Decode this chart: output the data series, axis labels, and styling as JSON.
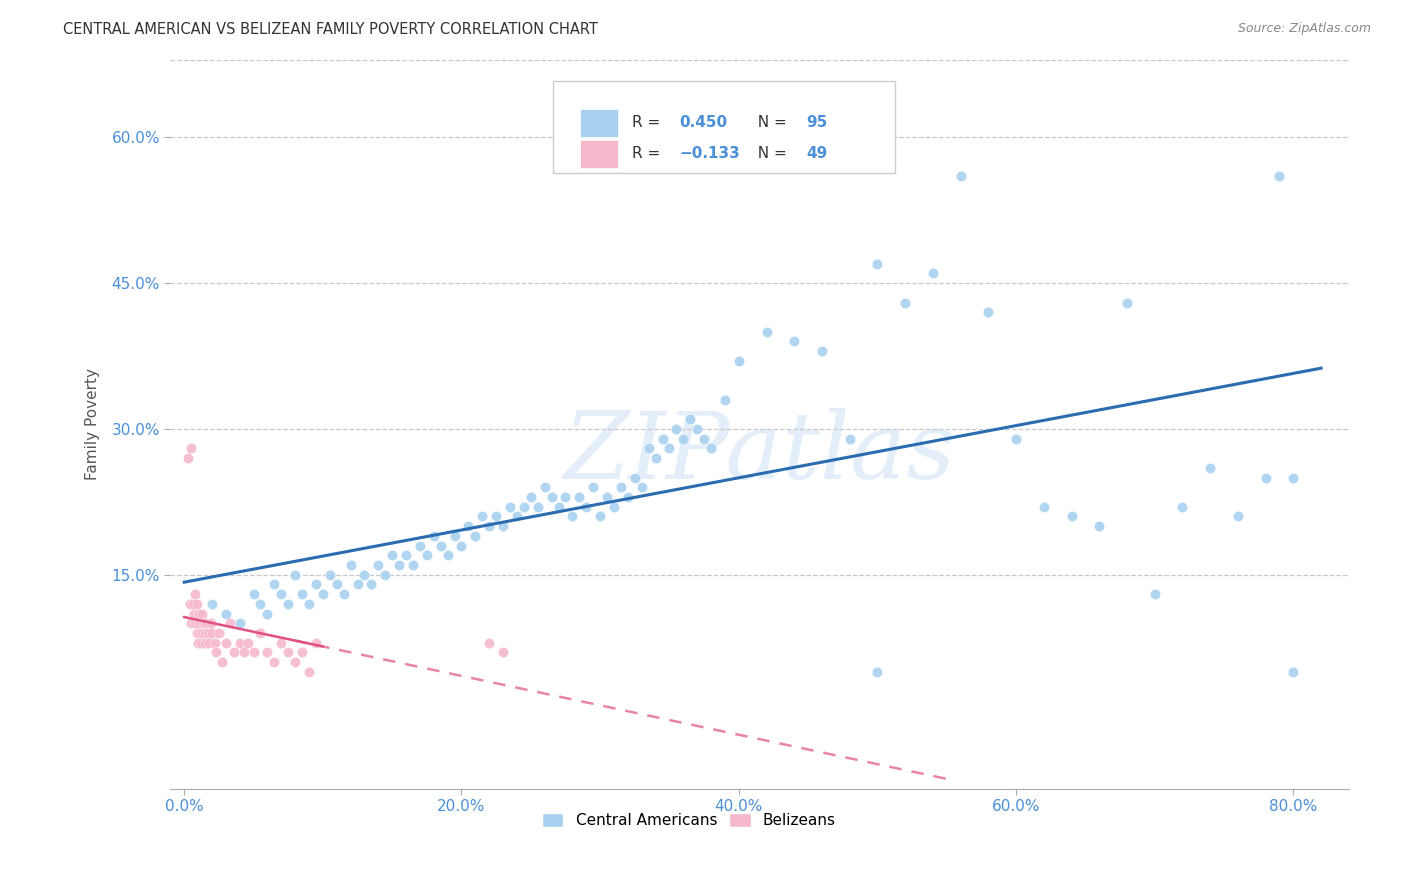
{
  "title": "CENTRAL AMERICAN VS BELIZEAN FAMILY POVERTY CORRELATION CHART",
  "source": "Source: ZipAtlas.com",
  "xlabel_ticks": [
    "0.0%",
    "20.0%",
    "40.0%",
    "60.0%",
    "80.0%"
  ],
  "xlabel_vals": [
    0.0,
    0.2,
    0.4,
    0.6,
    0.8
  ],
  "ylabel_ticks": [
    "60.0%",
    "45.0%",
    "30.0%",
    "15.0%"
  ],
  "ylabel_vals": [
    0.6,
    0.45,
    0.3,
    0.15
  ],
  "xlim": [
    -0.01,
    0.84
  ],
  "ylim": [
    -0.07,
    0.68
  ],
  "ylabel": "Family Poverty",
  "legend_labels": [
    "Central Americans",
    "Belizeans"
  ],
  "blue_color": "#a8d1f0",
  "pink_color": "#f5b8cc",
  "blue_line_color": "#2b6cb0",
  "pink_line_color": "#e05080",
  "R_blue": 0.45,
  "N_blue": 95,
  "R_pink": -0.133,
  "N_pink": 49,
  "blue_scatter_x": [
    0.02,
    0.03,
    0.04,
    0.05,
    0.055,
    0.06,
    0.065,
    0.07,
    0.075,
    0.08,
    0.085,
    0.09,
    0.095,
    0.1,
    0.105,
    0.11,
    0.115,
    0.12,
    0.125,
    0.13,
    0.135,
    0.14,
    0.145,
    0.15,
    0.155,
    0.16,
    0.165,
    0.17,
    0.175,
    0.18,
    0.185,
    0.19,
    0.195,
    0.2,
    0.205,
    0.21,
    0.215,
    0.22,
    0.225,
    0.23,
    0.235,
    0.24,
    0.245,
    0.25,
    0.255,
    0.26,
    0.265,
    0.27,
    0.275,
    0.28,
    0.285,
    0.29,
    0.295,
    0.3,
    0.305,
    0.31,
    0.315,
    0.32,
    0.325,
    0.33,
    0.335,
    0.34,
    0.345,
    0.35,
    0.355,
    0.36,
    0.365,
    0.37,
    0.375,
    0.38,
    0.39,
    0.4,
    0.42,
    0.44,
    0.46,
    0.48,
    0.5,
    0.52,
    0.54,
    0.56,
    0.58,
    0.6,
    0.62,
    0.64,
    0.66,
    0.68,
    0.7,
    0.72,
    0.74,
    0.76,
    0.78,
    0.79,
    0.8,
    0.8,
    0.5
  ],
  "blue_scatter_y": [
    0.12,
    0.11,
    0.1,
    0.13,
    0.12,
    0.11,
    0.14,
    0.13,
    0.12,
    0.15,
    0.13,
    0.12,
    0.14,
    0.13,
    0.15,
    0.14,
    0.13,
    0.16,
    0.14,
    0.15,
    0.14,
    0.16,
    0.15,
    0.17,
    0.16,
    0.17,
    0.16,
    0.18,
    0.17,
    0.19,
    0.18,
    0.17,
    0.19,
    0.18,
    0.2,
    0.19,
    0.21,
    0.2,
    0.21,
    0.2,
    0.22,
    0.21,
    0.22,
    0.23,
    0.22,
    0.24,
    0.23,
    0.22,
    0.23,
    0.21,
    0.23,
    0.22,
    0.24,
    0.21,
    0.23,
    0.22,
    0.24,
    0.23,
    0.25,
    0.24,
    0.28,
    0.27,
    0.29,
    0.28,
    0.3,
    0.29,
    0.31,
    0.3,
    0.29,
    0.28,
    0.33,
    0.37,
    0.4,
    0.39,
    0.38,
    0.29,
    0.47,
    0.43,
    0.46,
    0.56,
    0.42,
    0.29,
    0.22,
    0.21,
    0.2,
    0.43,
    0.13,
    0.22,
    0.26,
    0.21,
    0.25,
    0.56,
    0.25,
    0.05,
    0.05
  ],
  "pink_scatter_x": [
    0.003,
    0.004,
    0.005,
    0.005,
    0.006,
    0.007,
    0.008,
    0.008,
    0.009,
    0.009,
    0.01,
    0.01,
    0.01,
    0.011,
    0.011,
    0.012,
    0.012,
    0.013,
    0.013,
    0.014,
    0.015,
    0.015,
    0.016,
    0.017,
    0.018,
    0.019,
    0.02,
    0.022,
    0.023,
    0.025,
    0.027,
    0.03,
    0.033,
    0.036,
    0.04,
    0.043,
    0.046,
    0.05,
    0.055,
    0.06,
    0.065,
    0.07,
    0.075,
    0.08,
    0.085,
    0.09,
    0.095,
    0.22,
    0.23
  ],
  "pink_scatter_y": [
    0.27,
    0.12,
    0.28,
    0.1,
    0.12,
    0.11,
    0.13,
    0.1,
    0.12,
    0.09,
    0.11,
    0.1,
    0.08,
    0.11,
    0.09,
    0.1,
    0.08,
    0.11,
    0.09,
    0.1,
    0.08,
    0.09,
    0.1,
    0.09,
    0.08,
    0.1,
    0.09,
    0.08,
    0.07,
    0.09,
    0.06,
    0.08,
    0.1,
    0.07,
    0.08,
    0.07,
    0.08,
    0.07,
    0.09,
    0.07,
    0.06,
    0.08,
    0.07,
    0.06,
    0.07,
    0.05,
    0.08,
    0.08,
    0.07
  ],
  "watermark_text": "ZIPatlas",
  "background_color": "#ffffff",
  "grid_color": "#c8c8c8",
  "tick_color": "#4a90d9",
  "label_color": "#555555"
}
